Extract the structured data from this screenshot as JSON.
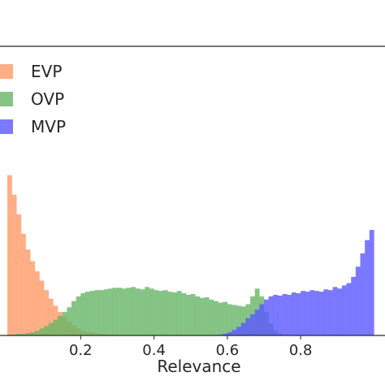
{
  "chart_data": {
    "type": "histogram",
    "xlabel": "Relevance",
    "xlim": [
      -0.02,
      1.03
    ],
    "xticks": [
      0.2,
      0.4,
      0.6,
      0.8
    ],
    "ylim": [
      0,
      3.7
    ],
    "grid": false,
    "legend_position": "top-left",
    "bin_width": 0.0125,
    "series": [
      {
        "name": "EVP",
        "color": "#ff9a66",
        "x_start": 0.0,
        "values": [
          2.05,
          1.8,
          1.55,
          1.3,
          1.1,
          0.95,
          0.82,
          0.7,
          0.58,
          0.47,
          0.38,
          0.3,
          0.24,
          0.18,
          0.13,
          0.09,
          0.06,
          0.045,
          0.035,
          0.025,
          0.02,
          0.015,
          0.01,
          0.006
        ]
      },
      {
        "name": "OVP",
        "color": "#66b566",
        "x_start": 0.0,
        "values": [
          0.01,
          0.01,
          0.02,
          0.02,
          0.03,
          0.04,
          0.06,
          0.09,
          0.12,
          0.16,
          0.2,
          0.25,
          0.3,
          0.36,
          0.44,
          0.5,
          0.54,
          0.56,
          0.57,
          0.58,
          0.58,
          0.59,
          0.6,
          0.61,
          0.61,
          0.6,
          0.61,
          0.62,
          0.6,
          0.59,
          0.62,
          0.6,
          0.58,
          0.57,
          0.58,
          0.56,
          0.55,
          0.57,
          0.54,
          0.52,
          0.53,
          0.5,
          0.48,
          0.49,
          0.46,
          0.44,
          0.42,
          0.43,
          0.4,
          0.39,
          0.38,
          0.37,
          0.4,
          0.5,
          0.6,
          0.5,
          0.3,
          0.15,
          0.06,
          0.02
        ]
      },
      {
        "name": "MVP",
        "color": "#5a58ff",
        "x_start": 0.0,
        "values": [
          0.0,
          0.0,
          0.0,
          0.0,
          0.0,
          0.0,
          0.0,
          0.0,
          0.0,
          0.0,
          0.0,
          0.0,
          0.0,
          0.0,
          0.0,
          0.0,
          0.0,
          0.0,
          0.0,
          0.0,
          0.0,
          0.0,
          0.0,
          0.0,
          0.0,
          0.0,
          0.0,
          0.0,
          0.0,
          0.0,
          0.0,
          0.0,
          0.0,
          0.0,
          0.0,
          0.0,
          0.0,
          0.0,
          0.0,
          0.0,
          0.0,
          0.0,
          0.0,
          0.0,
          0.0,
          0.0,
          0.01,
          0.02,
          0.04,
          0.07,
          0.11,
          0.16,
          0.22,
          0.27,
          0.33,
          0.4,
          0.46,
          0.5,
          0.52,
          0.51,
          0.53,
          0.52,
          0.55,
          0.54,
          0.57,
          0.56,
          0.58,
          0.57,
          0.56,
          0.59,
          0.58,
          0.62,
          0.6,
          0.64,
          0.67,
          0.75,
          0.88,
          1.05,
          1.22,
          1.35
        ]
      }
    ]
  }
}
